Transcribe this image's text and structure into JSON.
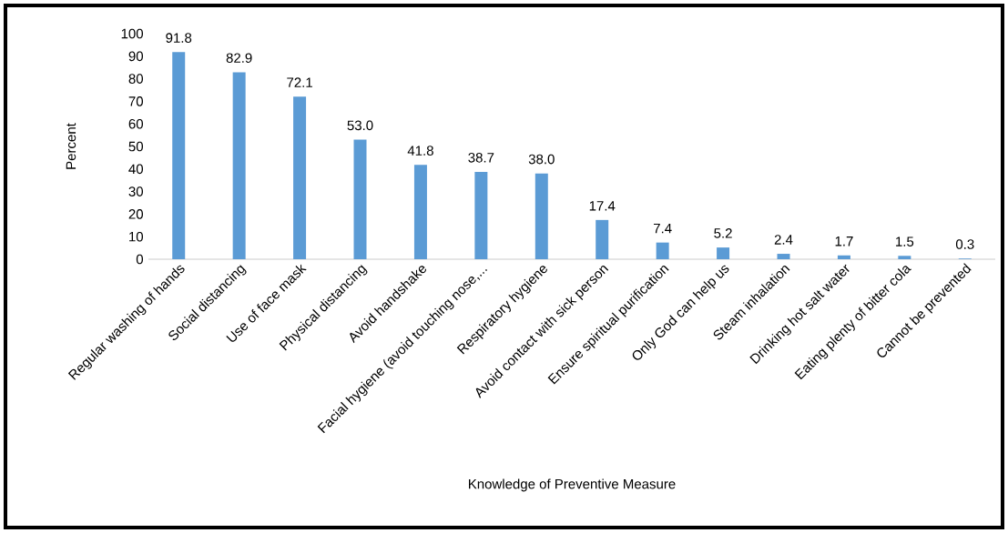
{
  "chart_data": {
    "type": "bar",
    "xlabel": "Knowledge of Preventive Measure",
    "ylabel": "Percent",
    "categories": [
      "Regular washing of hands",
      "Social distancing",
      "Use of face mask",
      "Physical distancing",
      "Avoid handshake",
      "Facial hygiene (avoid touching nose,...",
      "Respiratory hygiene",
      "Avoid contact with sick person",
      "Ensure spiritual purification",
      "Only God can help us",
      "Steam inhalation",
      "Drinking hot salt water",
      "Eating plenty of bitter cola",
      "Cannot be prevented"
    ],
    "values": [
      91.8,
      82.9,
      72.1,
      53.0,
      41.8,
      38.7,
      38.0,
      17.4,
      7.4,
      5.2,
      2.4,
      1.7,
      1.5,
      0.3
    ],
    "value_labels": [
      "91.8",
      "82.9",
      "72.1",
      "53.0",
      "41.8",
      "38.7",
      "38.0",
      "17.4",
      "7.4",
      "5.2",
      "2.4",
      "1.7",
      "1.5",
      "0.3"
    ],
    "color": "#5b9bd5",
    "ylim": [
      0,
      100
    ],
    "yticks": [
      0,
      10,
      20,
      30,
      40,
      50,
      60,
      70,
      80,
      90,
      100
    ]
  }
}
